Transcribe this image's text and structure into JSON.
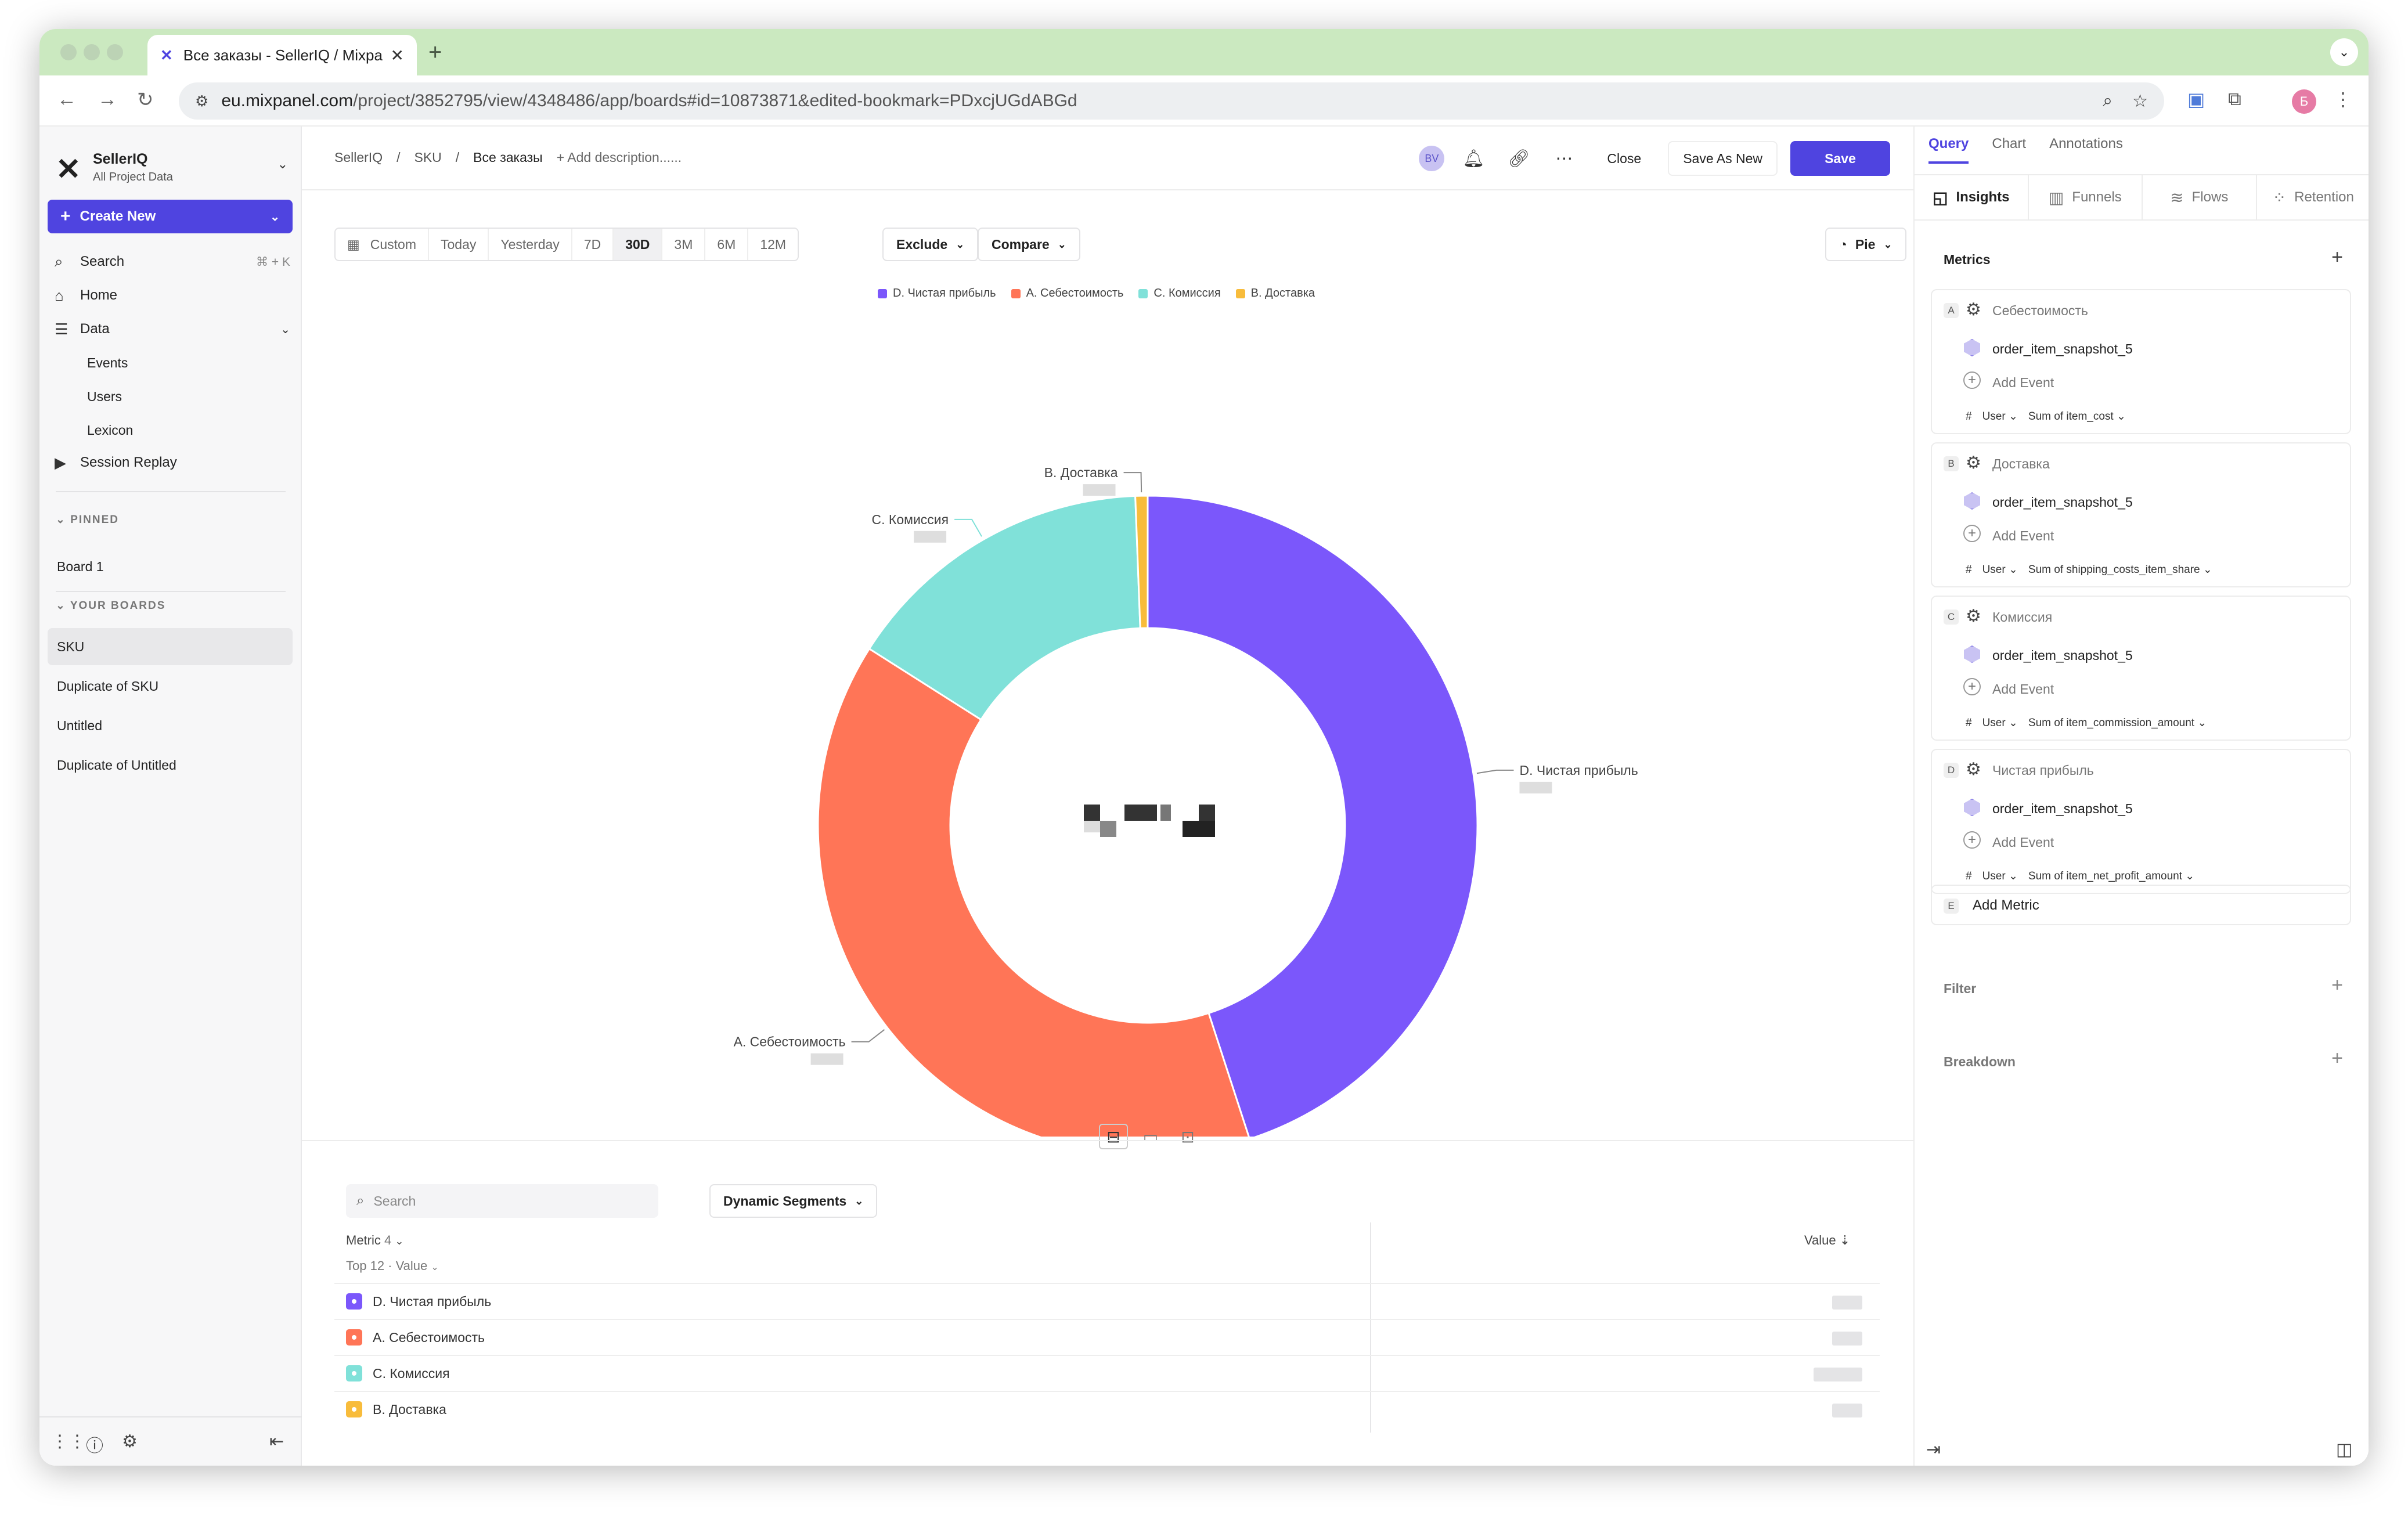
{
  "browser": {
    "tab_title": "Все заказы - SellerIQ / Mixpa",
    "url_host": "eu.mixpanel.com",
    "url_path": "/project/3852795/view/4348486/app/boards#id=10873871&edited-bookmark=PDxcjUGdABGd",
    "profile_letter": "Б"
  },
  "sidebar": {
    "org_name": "SellerIQ",
    "org_sub": "All Project Data",
    "create_label": "Create New",
    "search_label": "Search",
    "search_shortcut": "⌘ + K",
    "home_label": "Home",
    "data_label": "Data",
    "data_items": [
      "Events",
      "Users",
      "Lexicon"
    ],
    "replay_label": "Session Replay",
    "pinned_header": "PINNED",
    "pinned": [
      "Board 1"
    ],
    "boards_header": "YOUR BOARDS",
    "boards": [
      "SKU",
      "Duplicate of SKU",
      "Untitled",
      "Duplicate of Untitled"
    ]
  },
  "header": {
    "crumbs": [
      "SellerIQ",
      "SKU",
      "Все заказы"
    ],
    "separator": "/",
    "add_description": "+ Add description......",
    "avatar": "BV",
    "close_label": "Close",
    "save_as_new_label": "Save As New",
    "save_label": "Save"
  },
  "toolbar": {
    "date_segments": [
      "Custom",
      "Today",
      "Yesterday",
      "7D",
      "30D",
      "3M",
      "6M",
      "12M"
    ],
    "selected_segment": "30D",
    "exclude_label": "Exclude",
    "compare_label": "Compare",
    "chart_type_label": "Pie"
  },
  "chart_data": {
    "type": "pie",
    "series": [
      {
        "name": "D. Чистая прибыль",
        "value": 45.0,
        "color": "#7b57fb"
      },
      {
        "name": "A. Себестоимость",
        "value": 39.0,
        "color": "#ff7557"
      },
      {
        "name": "C. Комиссия",
        "value": 15.4,
        "color": "#80e1d9"
      },
      {
        "name": "B. Доставка",
        "value": 0.6,
        "color": "#f8bc3b"
      }
    ],
    "legend_order": [
      "D. Чистая прибыль",
      "A. Себестоимость",
      "C. Комиссия",
      "B. Доставка"
    ],
    "legend_position": "top",
    "donut": true
  },
  "table": {
    "search_placeholder": "Search",
    "dynamic_segments_label": "Dynamic Segments",
    "metric_col": "Metric",
    "metric_count": "4",
    "top_label": "Top 12 · Value",
    "value_col": "Value",
    "rows": [
      {
        "label": "D. Чистая прибыль",
        "color": "#7b57fb"
      },
      {
        "label": "A. Себестоимость",
        "color": "#ff7557"
      },
      {
        "label": "C. Комиссия",
        "color": "#80e1d9"
      },
      {
        "label": "B. Доставка",
        "color": "#f8bc3b"
      }
    ]
  },
  "panel": {
    "tabs": [
      "Query",
      "Chart",
      "Annotations"
    ],
    "types": [
      "Insights",
      "Funnels",
      "Flows",
      "Retention"
    ],
    "metrics_label": "Metrics",
    "metrics": [
      {
        "letter": "A",
        "name": "Себестоимость",
        "event": "order_item_snapshot_5",
        "add_event": "Add Event",
        "hash": "#",
        "user": "User",
        "agg": "Sum of item_cost"
      },
      {
        "letter": "B",
        "name": "Доставка",
        "event": "order_item_snapshot_5",
        "add_event": "Add Event",
        "hash": "#",
        "user": "User",
        "agg": "Sum of shipping_costs_item_share"
      },
      {
        "letter": "C",
        "name": "Комиссия",
        "event": "order_item_snapshot_5",
        "add_event": "Add Event",
        "hash": "#",
        "user": "User",
        "agg": "Sum of item_commission_amount"
      },
      {
        "letter": "D",
        "name": "Чистая прибыль",
        "event": "order_item_snapshot_5",
        "add_event": "Add Event",
        "hash": "#",
        "user": "User",
        "agg": "Sum of item_net_profit_amount"
      }
    ],
    "add_metric_letter": "E",
    "add_metric_label": "Add Metric",
    "filter_label": "Filter",
    "breakdown_label": "Breakdown"
  }
}
